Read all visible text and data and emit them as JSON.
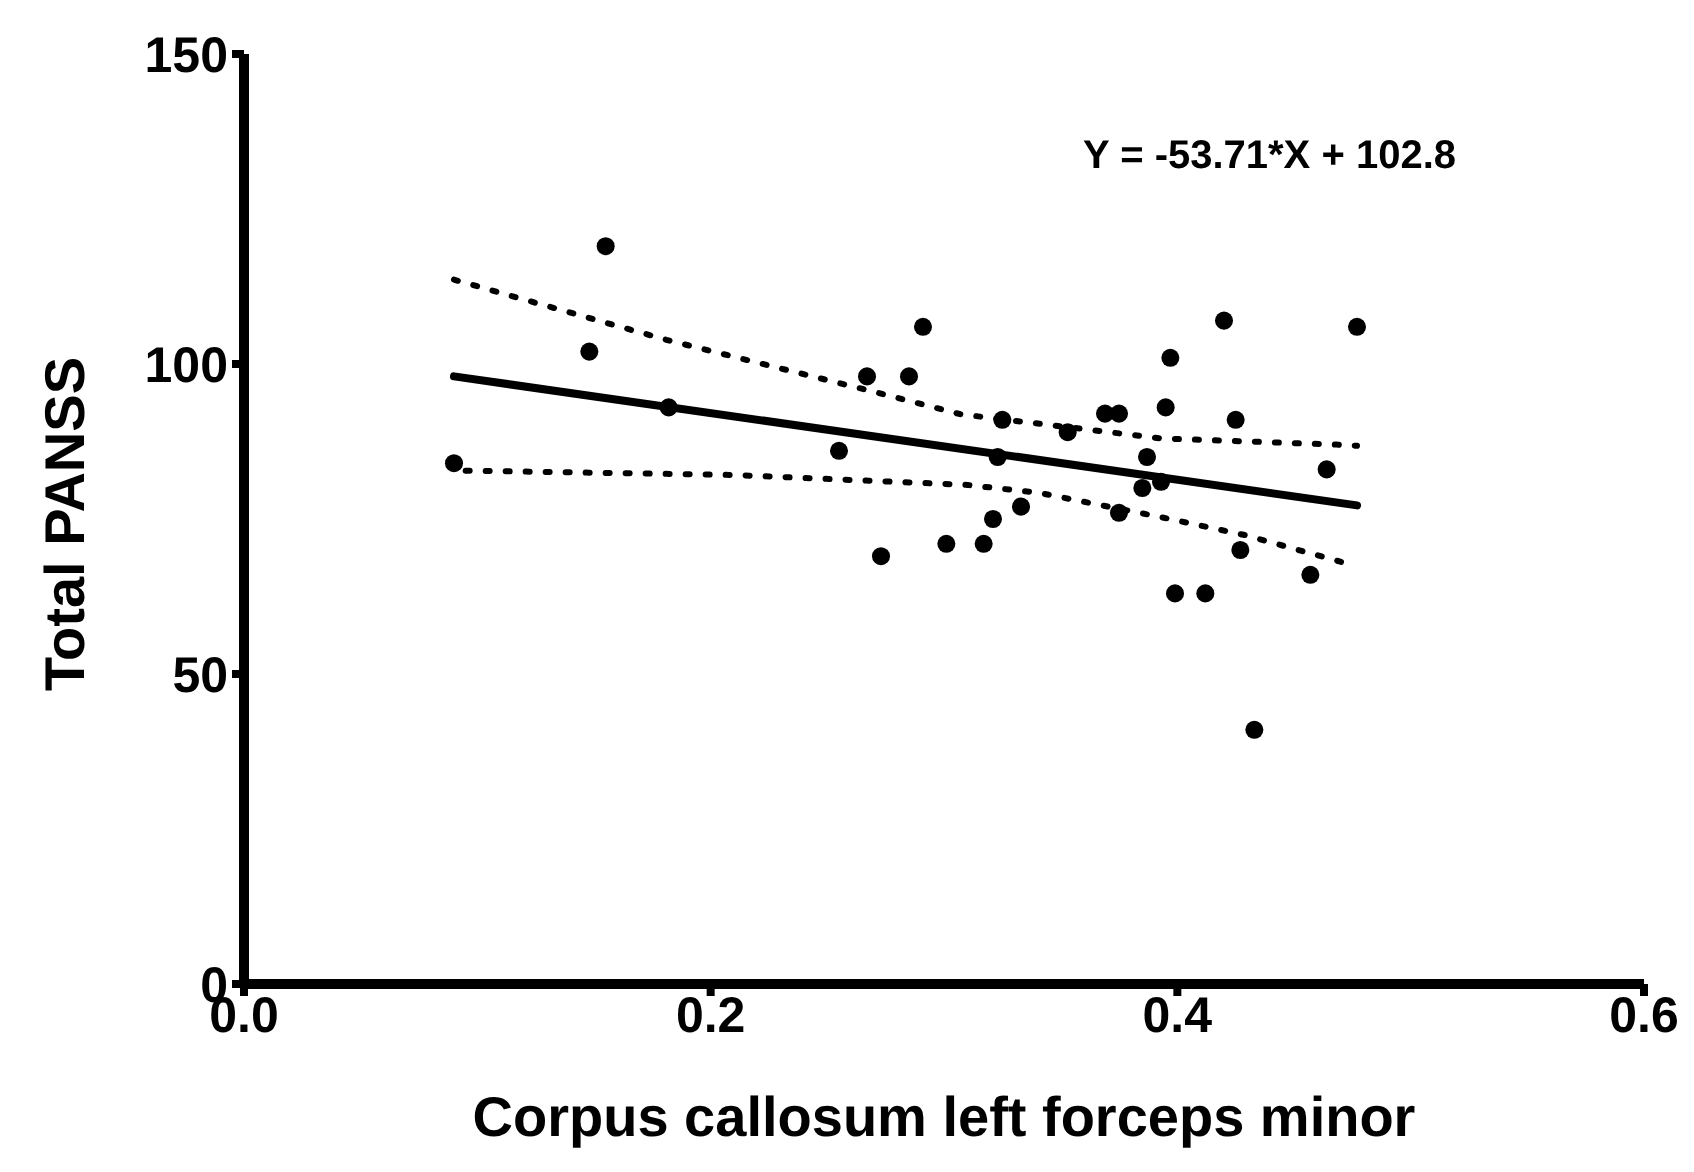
{
  "chart_data": {
    "type": "scatter",
    "xlabel": "Corpus callosum left forceps minor",
    "ylabel": "Total PANSS",
    "xlim": [
      0,
      0.6
    ],
    "xticks": [
      {
        "value": 0,
        "label": "0.0"
      },
      0.2,
      0.4,
      0.6
    ],
    "ylim": [
      0,
      150
    ],
    "yticks": [
      0,
      50,
      100,
      150
    ],
    "grid": false,
    "annotations": [
      "Y = -53.71*X + 102.8"
    ],
    "series": [
      {
        "color": "#000000",
        "marker": "circle",
        "x": [
          0.09,
          0.148,
          0.155,
          0.182,
          0.255,
          0.267,
          0.285,
          0.291,
          0.273,
          0.301,
          0.317,
          0.321,
          0.333,
          0.323,
          0.325,
          0.353,
          0.369,
          0.375,
          0.395,
          0.397,
          0.42,
          0.477,
          0.425,
          0.387,
          0.385,
          0.393,
          0.375,
          0.427,
          0.457,
          0.399,
          0.412,
          0.464,
          0.433
        ],
        "values": [
          84,
          102,
          119,
          93,
          86,
          98,
          98,
          106,
          69,
          71,
          71,
          75,
          77,
          85,
          91,
          89,
          92,
          92,
          93,
          101,
          107,
          106,
          91,
          85,
          80,
          81,
          76,
          70,
          66,
          63,
          63,
          83,
          41
        ]
      },
      {
        "type": "line",
        "color": "#000000",
        "marker": "none",
        "line_style": "solid",
        "x": [
          0.09,
          0.477
        ],
        "values": [
          98.0,
          77.2
        ]
      },
      {
        "type": "line",
        "color": "#000000",
        "marker": "none",
        "line_style": "dotted",
        "x": [
          0.09,
          0.181,
          0.267,
          0.307,
          0.393,
          0.468,
          0.477
        ],
        "values": [
          113.6,
          103.9,
          95.8,
          91.9,
          88,
          87,
          86.8
        ]
      },
      {
        "type": "line",
        "color": "#000000",
        "marker": "none",
        "line_style": "dotted",
        "x": [
          0.095,
          0.21,
          0.31,
          0.341,
          0.393,
          0.429,
          0.472
        ],
        "values": [
          82.8,
          82.1,
          80.5,
          79.2,
          75.3,
          72.4,
          67.9
        ]
      }
    ]
  }
}
